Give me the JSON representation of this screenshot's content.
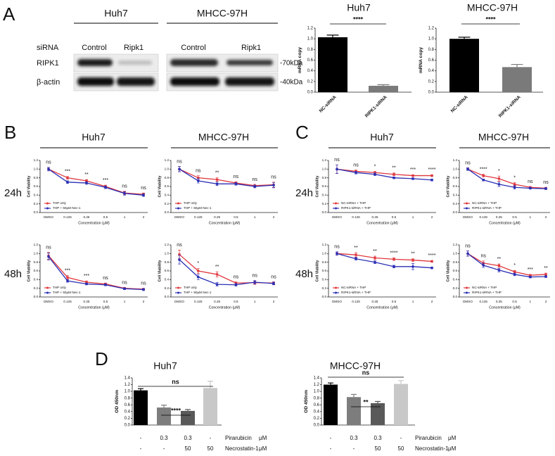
{
  "panel_labels": [
    "A",
    "B",
    "C",
    "D"
  ],
  "blot": {
    "cell_lines": [
      "Huh7",
      "MHCC-97H"
    ],
    "row_label": "siRNA",
    "lanes": [
      "Control",
      "Ripk1",
      "Control",
      "Ripk1"
    ],
    "proteins": [
      "RIPK1",
      "β-actin"
    ],
    "sizes": [
      "-70kDa",
      "-40kDa"
    ]
  },
  "B": {
    "columns": [
      "Huh7",
      "MHCC-97H"
    ],
    "rows": [
      "24h",
      "48h"
    ]
  },
  "C": {
    "columns": [
      "Huh7",
      "MHCC-97H"
    ],
    "rows": [
      "24h",
      "48h"
    ]
  },
  "chart_data": [
    {
      "type": "bar",
      "title": "Huh7",
      "ylabel": "mRNA copy",
      "categories": [
        "NC-siRNA",
        "RIPK1-siRNA"
      ],
      "values": [
        1.03,
        0.12
      ],
      "errors": [
        0.04,
        0.02
      ],
      "colors": [
        "#000000",
        "#7a7a7a"
      ],
      "ylim": [
        0,
        1.2
      ],
      "yticks": [
        {
          "value": 0,
          "label": "0.0"
        },
        0.2,
        0.4,
        0.6,
        0.8,
        {
          "value": 1,
          "label": "1.0"
        },
        1.2
      ],
      "annotations": [
        "****"
      ]
    },
    {
      "type": "bar",
      "title": "MHCC-97H",
      "ylabel": "mRNA copy",
      "categories": [
        "NC-siRNA",
        "RIPK1-siRNA"
      ],
      "values": [
        1.0,
        0.47
      ],
      "errors": [
        0.03,
        0.05
      ],
      "colors": [
        "#000000",
        "#7a7a7a"
      ],
      "ylim": [
        0,
        1.2
      ],
      "yticks": [
        {
          "value": 0,
          "label": "0.0"
        },
        0.2,
        0.4,
        0.6,
        0.8,
        {
          "value": 1,
          "label": "1.0"
        },
        1.2
      ],
      "annotations": [
        "****"
      ]
    },
    {
      "type": "line",
      "xlabel": "Concentration (μM)",
      "ylabel": "Cell Viability",
      "categories": [
        "DMSO",
        "0.125",
        "0.25",
        "0.5",
        "1",
        "2"
      ],
      "ylim": [
        0,
        1.2
      ],
      "yticks": [
        {
          "value": 0,
          "label": "0.0"
        },
        0.2,
        0.4,
        0.6,
        0.8,
        {
          "value": 1,
          "label": "1.0"
        },
        1.2
      ],
      "legend": "lower left",
      "series": [
        {
          "name": "THP only",
          "color": "#e0383e",
          "values": [
            1.0,
            0.8,
            0.73,
            0.6,
            0.45,
            0.42
          ],
          "errors": [
            0.04,
            0.03,
            0.03,
            0.03,
            0.04,
            0.03
          ]
        },
        {
          "name": "THP + 50μM Nec-1",
          "color": "#2b2fb5",
          "values": [
            1.0,
            0.7,
            0.68,
            0.58,
            0.44,
            0.4
          ],
          "errors": [
            0.04,
            0.03,
            0.03,
            0.03,
            0.04,
            0.03
          ]
        }
      ],
      "annotations": [
        "ns",
        "***",
        "**",
        "***",
        "ns",
        "ns"
      ]
    },
    {
      "type": "line",
      "xlabel": "Concentration (μM)",
      "ylabel": "Cell Viability",
      "categories": [
        "DMSO",
        "0.125",
        "0.25",
        "0.5",
        "1",
        "2"
      ],
      "ylim": [
        0,
        1.2
      ],
      "yticks": [
        {
          "value": 0,
          "label": "0.0"
        },
        0.2,
        0.4,
        0.6,
        0.8,
        {
          "value": 1,
          "label": "1.0"
        },
        1.2
      ],
      "legend": "lower left",
      "series": [
        {
          "name": "THP only",
          "color": "#e0383e",
          "values": [
            1.0,
            0.8,
            0.76,
            0.68,
            0.62,
            0.64
          ],
          "errors": [
            0.06,
            0.05,
            0.04,
            0.03,
            0.03,
            0.06
          ]
        },
        {
          "name": "THP + 50μM Nec-1",
          "color": "#2b2fb5",
          "values": [
            1.0,
            0.73,
            0.66,
            0.66,
            0.6,
            0.63
          ],
          "errors": [
            0.06,
            0.05,
            0.04,
            0.03,
            0.03,
            0.06
          ]
        }
      ],
      "annotations": [
        "ns",
        "ns",
        "**",
        "ns",
        "ns",
        "ns"
      ]
    },
    {
      "type": "line",
      "xlabel": "Concentration (μM)",
      "ylabel": "Cell Viability",
      "categories": [
        "DMSO",
        "0.125",
        "0.25",
        "0.5",
        "1",
        "2"
      ],
      "ylim": [
        0,
        1.2
      ],
      "yticks": [
        {
          "value": 0,
          "label": "0.0"
        },
        0.2,
        0.4,
        0.6,
        0.8,
        {
          "value": 1,
          "label": "1.0"
        },
        1.2
      ],
      "legend": "lower left",
      "series": [
        {
          "name": "THP only",
          "color": "#e0383e",
          "values": [
            0.95,
            0.45,
            0.34,
            0.3,
            0.2,
            0.18
          ],
          "errors": [
            0.08,
            0.04,
            0.03,
            0.02,
            0.02,
            0.02
          ]
        },
        {
          "name": "THP + 50μM Nec-1",
          "color": "#2b2fb5",
          "values": [
            0.93,
            0.37,
            0.3,
            0.28,
            0.19,
            0.17
          ],
          "errors": [
            0.08,
            0.03,
            0.02,
            0.02,
            0.02,
            0.02
          ]
        }
      ],
      "annotations": [
        "ns",
        "***",
        "***",
        "ns",
        "ns",
        "ns"
      ]
    },
    {
      "type": "line",
      "xlabel": "Concentration (μM)",
      "ylabel": "Cell Viability",
      "categories": [
        "DMSO",
        "0.125",
        "0.25",
        "0.5",
        "1",
        "2"
      ],
      "ylim": [
        0,
        1.2
      ],
      "yticks": [
        {
          "value": 0,
          "label": "0.0"
        },
        0.2,
        0.4,
        0.6,
        0.8,
        {
          "value": 1,
          "label": "1.0"
        },
        1.2
      ],
      "legend": "lower left",
      "series": [
        {
          "name": "THP only",
          "color": "#e0383e",
          "values": [
            0.98,
            0.6,
            0.52,
            0.32,
            0.33,
            0.32
          ],
          "errors": [
            0.1,
            0.06,
            0.06,
            0.03,
            0.04,
            0.03
          ]
        },
        {
          "name": "THP + 50μM Nec-1",
          "color": "#2b2fb5",
          "values": [
            0.86,
            0.46,
            0.29,
            0.28,
            0.34,
            0.31
          ],
          "errors": [
            0.1,
            0.06,
            0.04,
            0.03,
            0.04,
            0.03
          ]
        }
      ],
      "annotations": [
        "ns",
        "*",
        "**",
        "ns",
        "ns",
        "ns"
      ]
    },
    {
      "type": "line",
      "xlabel": "Concentration (μM)",
      "ylabel": "Cell Viability",
      "categories": [
        "DMSO",
        "0.125",
        "0.25",
        "0.5",
        "1",
        "2"
      ],
      "ylim": [
        0,
        1.2
      ],
      "yticks": [
        {
          "value": 0,
          "label": "0.0"
        },
        0.2,
        0.4,
        0.6,
        0.8,
        {
          "value": 1,
          "label": "1.0"
        },
        1.2
      ],
      "legend": "lower left",
      "series": [
        {
          "name": "NC-siRNA + THP",
          "color": "#e0383e",
          "values": [
            1.0,
            0.95,
            0.92,
            0.88,
            0.85,
            0.85
          ],
          "errors": [
            0.1,
            0.03,
            0.03,
            0.03,
            0.02,
            0.02
          ]
        },
        {
          "name": "RIPK1-siRNA + THP",
          "color": "#2b2fb5",
          "values": [
            1.0,
            0.92,
            0.88,
            0.8,
            0.78,
            0.75
          ],
          "errors": [
            0.1,
            0.03,
            0.03,
            0.02,
            0.02,
            0.02
          ]
        }
      ],
      "annotations": [
        "ns",
        "ns",
        "*",
        "**",
        "***",
        "****"
      ]
    },
    {
      "type": "line",
      "xlabel": "Concentration (μM)",
      "ylabel": "Cell Viability",
      "categories": [
        "DMSO",
        "0.125",
        "0.25",
        "0.5",
        "1",
        "2"
      ],
      "ylim": [
        0,
        1.2
      ],
      "yticks": [
        {
          "value": 0,
          "label": "0.0"
        },
        0.2,
        0.4,
        0.6,
        0.8,
        {
          "value": 1,
          "label": "1.0"
        },
        1.2
      ],
      "legend": "lower left",
      "series": [
        {
          "name": "NC-siRNA + THP",
          "color": "#e0383e",
          "values": [
            1.0,
            0.85,
            0.78,
            0.65,
            0.58,
            0.56
          ],
          "errors": [
            0.03,
            0.03,
            0.06,
            0.04,
            0.02,
            0.02
          ]
        },
        {
          "name": "RIPK1-siRNA + THP",
          "color": "#2b2fb5",
          "values": [
            1.0,
            0.75,
            0.65,
            0.58,
            0.56,
            0.55
          ],
          "errors": [
            0.03,
            0.02,
            0.05,
            0.04,
            0.02,
            0.02
          ]
        }
      ],
      "annotations": [
        "ns",
        "****",
        "*",
        "*",
        "ns",
        "ns"
      ]
    },
    {
      "type": "line",
      "xlabel": "Concentration (μM)",
      "ylabel": "Cell Viability",
      "categories": [
        "DMSO",
        "0.125",
        "0.25",
        "0.5",
        "1",
        "2"
      ],
      "ylim": [
        0,
        1.2
      ],
      "yticks": [
        {
          "value": 0,
          "label": "0.0"
        },
        0.2,
        0.4,
        0.6,
        0.8,
        {
          "value": 1,
          "label": "1.0"
        },
        1.2
      ],
      "legend": "lower left",
      "series": [
        {
          "name": "NC-siRNA + THP",
          "color": "#e0383e",
          "values": [
            1.0,
            0.97,
            0.9,
            0.87,
            0.85,
            0.82
          ],
          "errors": [
            0.04,
            0.05,
            0.04,
            0.03,
            0.03,
            0.02
          ]
        },
        {
          "name": "RIPK1-siRNA + THP",
          "color": "#2b2fb5",
          "values": [
            1.0,
            0.88,
            0.8,
            0.7,
            0.7,
            0.67
          ],
          "errors": [
            0.04,
            0.03,
            0.03,
            0.03,
            0.07,
            0.02
          ]
        }
      ],
      "annotations": [
        "ns",
        "**",
        "**",
        "****",
        "**",
        "****"
      ]
    },
    {
      "type": "line",
      "xlabel": "Concentration (μM)",
      "ylabel": "Cell Viability",
      "categories": [
        "DMSO",
        "0.125",
        "0.25",
        "0.5",
        "1",
        "2"
      ],
      "ylim": [
        0,
        1.2
      ],
      "yticks": [
        {
          "value": 0,
          "label": "0.0"
        },
        0.2,
        0.4,
        0.6,
        0.8,
        {
          "value": 1,
          "label": "1.0"
        },
        1.2
      ],
      "legend": "lower left",
      "series": [
        {
          "name": "NC-siRNA + THP",
          "color": "#e0383e",
          "values": [
            1.0,
            0.78,
            0.72,
            0.58,
            0.5,
            0.52
          ],
          "errors": [
            0.06,
            0.05,
            0.04,
            0.03,
            0.02,
            0.03
          ]
        },
        {
          "name": "RIPK1-siRNA + THP",
          "color": "#2b2fb5",
          "values": [
            1.0,
            0.73,
            0.62,
            0.52,
            0.46,
            0.47
          ],
          "errors": [
            0.06,
            0.05,
            0.04,
            0.03,
            0.02,
            0.02
          ]
        }
      ],
      "annotations": [
        "ns",
        "ns",
        "**",
        "*",
        "***",
        "**"
      ]
    },
    {
      "type": "bar",
      "title": "Huh7",
      "ylabel": "OD 450nm",
      "values": [
        1.03,
        0.52,
        0.42,
        1.1
      ],
      "errors": [
        0.05,
        0.07,
        0.04,
        0.2
      ],
      "colors": [
        "#000000",
        "#7d7d7d",
        "#595959",
        "#c8c8c8"
      ],
      "ylim": [
        0,
        1.4
      ],
      "yticks": [
        {
          "value": 0,
          "label": "0.0"
        },
        0.2,
        0.4,
        0.6,
        0.8,
        {
          "value": 1,
          "label": "1.0"
        },
        1.2,
        1.4
      ],
      "annotations": [
        "ns",
        "****"
      ],
      "treatments": [
        {
          "name": "Pirarubicin",
          "unit": "μM",
          "levels": [
            "-",
            "0.3",
            "0.3",
            "-"
          ]
        },
        {
          "name": "Necrostatin-1",
          "unit": "μM",
          "levels": [
            "-",
            "-",
            "50",
            "50"
          ]
        }
      ]
    },
    {
      "type": "bar",
      "title": "MHCC-97H",
      "ylabel": "OD 450nm",
      "values": [
        1.2,
        0.83,
        0.65,
        1.22
      ],
      "errors": [
        0.05,
        0.08,
        0.05,
        0.1
      ],
      "colors": [
        "#000000",
        "#7d7d7d",
        "#595959",
        "#c8c8c8"
      ],
      "ylim": [
        0,
        1.4
      ],
      "yticks": [
        {
          "value": 0,
          "label": "0.0"
        },
        0.2,
        0.4,
        0.6,
        0.8,
        {
          "value": 1,
          "label": "1.0"
        },
        1.2,
        1.4
      ],
      "annotations": [
        "ns",
        "**"
      ],
      "treatments": [
        {
          "name": "Pirarubicin",
          "unit": "μM",
          "levels": [
            "-",
            "0.3",
            "0.3",
            "-"
          ]
        },
        {
          "name": "Necrostatin-1",
          "unit": "μM",
          "levels": [
            "-",
            "-",
            "50",
            "50"
          ]
        }
      ]
    }
  ]
}
